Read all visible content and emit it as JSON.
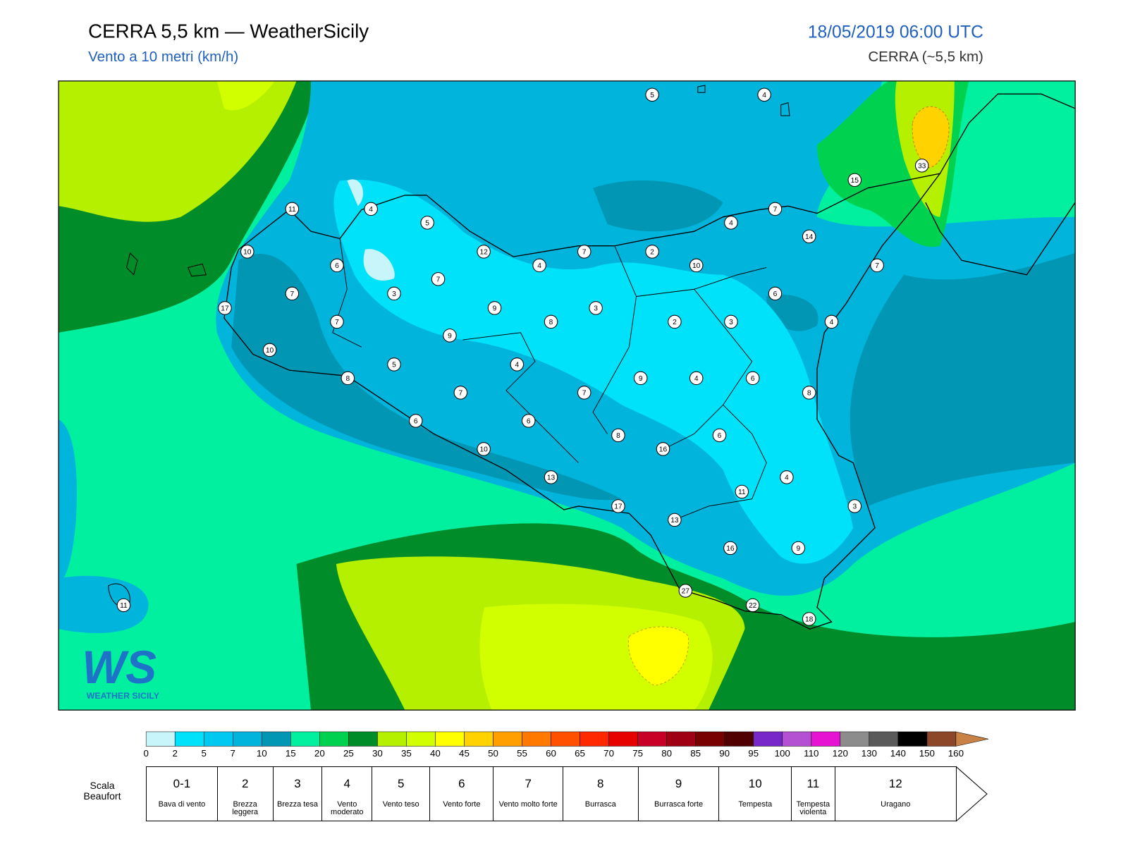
{
  "header": {
    "title": "CERRA 5,5 km — WeatherSicily",
    "subtitle": "Vento a 10 metri (km/h)",
    "date": "18/05/2019 06:00 UTC",
    "model": "CERRA (~5,5 km)"
  },
  "logo": {
    "mark": "WS",
    "name": "WEATHER SICILY"
  },
  "stations": [
    5,
    4,
    11,
    4,
    5,
    33,
    15,
    7,
    4,
    14,
    10,
    12,
    7,
    2,
    6,
    4,
    10,
    7,
    7,
    7,
    3,
    6,
    17,
    9,
    3,
    7,
    8,
    2,
    3,
    4,
    9,
    10,
    5,
    4,
    8,
    9,
    4,
    6,
    7,
    7,
    8,
    6,
    6,
    6,
    8,
    16,
    10,
    4,
    13,
    11,
    3,
    17,
    13,
    16,
    9,
    27,
    22,
    18,
    11
  ],
  "colorbar": {
    "ticks": [
      0,
      2,
      5,
      7,
      10,
      15,
      20,
      25,
      30,
      35,
      40,
      45,
      50,
      55,
      60,
      65,
      70,
      75,
      80,
      85,
      90,
      95,
      100,
      110,
      120,
      130,
      140,
      150,
      160
    ],
    "colors": [
      "#c8f5fa",
      "#00e1fa",
      "#00c8f0",
      "#00b4dc",
      "#0096b4",
      "#00f0a0",
      "#00d250",
      "#008c28",
      "#b4f000",
      "#d2ff00",
      "#ffff00",
      "#ffd200",
      "#ffa000",
      "#ff7800",
      "#ff5000",
      "#ff2800",
      "#e60000",
      "#c80028",
      "#a00014",
      "#780000",
      "#500000",
      "#7828c8",
      "#b450d2",
      "#e614d2",
      "#8c8c8c",
      "#5a5a5a",
      "#000000",
      "#8c4628",
      "#c88246"
    ]
  },
  "beaufort": {
    "title": "Scala Beaufort",
    "levels": [
      {
        "number": "0-1",
        "label": "Bava di vento"
      },
      {
        "number": "2",
        "label": "Brezza leggera"
      },
      {
        "number": "3",
        "label": "Brezza tesa"
      },
      {
        "number": "4",
        "label": "Vento moderato"
      },
      {
        "number": "5",
        "label": "Vento teso"
      },
      {
        "number": "6",
        "label": "Vento forte"
      },
      {
        "number": "7",
        "label": "Vento molto forte"
      },
      {
        "number": "8",
        "label": "Burrasca"
      },
      {
        "number": "9",
        "label": "Burrasca forte"
      },
      {
        "number": "10",
        "label": "Tempesta"
      },
      {
        "number": "11",
        "label": "Tempesta violenta"
      },
      {
        "number": "12",
        "label": "Uragano"
      }
    ]
  }
}
